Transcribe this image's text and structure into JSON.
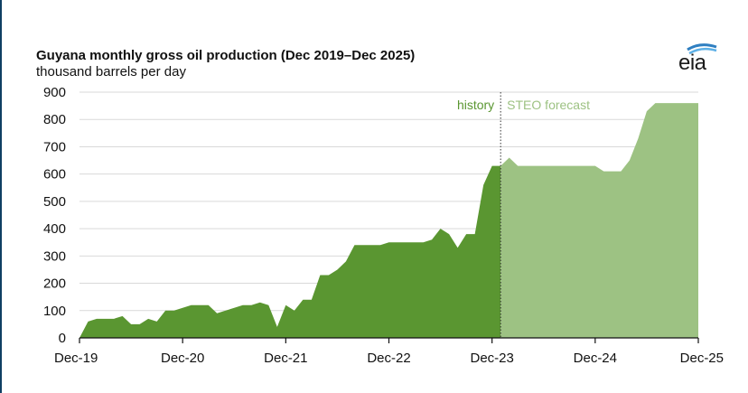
{
  "chart_data": {
    "type": "area",
    "title": "Guyana monthly gross oil production (Dec 2019–Dec 2025)",
    "subtitle": "thousand barrels per day",
    "xlabel": "",
    "ylabel": "",
    "ylim": [
      0,
      900
    ],
    "yticks": [
      0,
      100,
      200,
      300,
      400,
      500,
      600,
      700,
      800,
      900
    ],
    "xticks": [
      "Dec-19",
      "Dec-20",
      "Dec-21",
      "Dec-22",
      "Dec-23",
      "Dec-24",
      "Dec-25"
    ],
    "grid": true,
    "history_label": "history",
    "forecast_label": "STEO forecast",
    "series": [
      {
        "x": [
          "2019-12",
          "2020-01",
          "2020-02",
          "2020-03",
          "2020-04",
          "2020-05",
          "2020-06",
          "2020-07",
          "2020-08",
          "2020-09",
          "2020-10",
          "2020-11",
          "2020-12",
          "2021-01",
          "2021-02",
          "2021-03",
          "2021-04",
          "2021-05",
          "2021-06",
          "2021-07",
          "2021-08",
          "2021-09",
          "2021-10",
          "2021-11",
          "2021-12",
          "2022-01",
          "2022-02",
          "2022-03",
          "2022-04",
          "2022-05",
          "2022-06",
          "2022-07",
          "2022-08",
          "2022-09",
          "2022-10",
          "2022-11",
          "2022-12",
          "2023-01",
          "2023-02",
          "2023-03",
          "2023-04",
          "2023-05",
          "2023-06",
          "2023-07",
          "2023-08",
          "2023-09",
          "2023-10",
          "2023-11",
          "2023-12",
          "2024-01"
        ],
        "values": [
          0,
          60,
          70,
          70,
          70,
          80,
          50,
          50,
          70,
          60,
          100,
          100,
          110,
          120,
          120,
          120,
          90,
          100,
          110,
          120,
          120,
          130,
          120,
          40,
          120,
          100,
          140,
          140,
          230,
          230,
          250,
          280,
          340,
          340,
          340,
          340,
          350,
          350,
          350,
          350,
          350,
          360,
          400,
          380,
          330,
          380,
          380,
          560,
          630,
          630
        ],
        "color": "#5a9631"
      },
      {
        "x": [
          "2024-01",
          "2024-02",
          "2024-03",
          "2024-04",
          "2024-05",
          "2024-06",
          "2024-07",
          "2024-08",
          "2024-09",
          "2024-10",
          "2024-11",
          "2024-12",
          "2025-01",
          "2025-02",
          "2025-03",
          "2025-04",
          "2025-05",
          "2025-06",
          "2025-07",
          "2025-08",
          "2025-09",
          "2025-10",
          "2025-11",
          "2025-12"
        ],
        "values": [
          630,
          660,
          630,
          630,
          630,
          630,
          630,
          630,
          630,
          630,
          630,
          630,
          610,
          610,
          610,
          650,
          730,
          830,
          860,
          860,
          860,
          860,
          860,
          860
        ],
        "color": "#9dc283"
      }
    ]
  },
  "logo": {
    "text": "eia"
  },
  "colors": {
    "history": "#5a9631",
    "forecast": "#9dc283",
    "grid": "#d9d9d9",
    "axis": "#111111"
  }
}
